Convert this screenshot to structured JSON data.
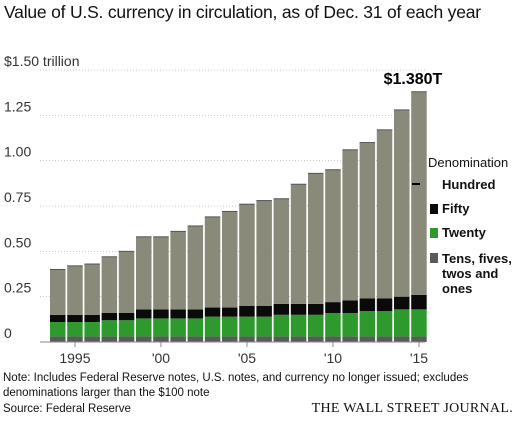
{
  "title": "Value of U.S. currency in circulation, as of Dec. 31 of each year",
  "chart_data": {
    "type": "bar",
    "stacked": true,
    "title": "Value of U.S. currency in circulation, as of Dec. 31 of each year",
    "ylabel": "$1.50 trillion",
    "ylim": [
      0,
      1.5
    ],
    "yticks": [
      0,
      0.25,
      0.5,
      0.75,
      1.0,
      1.25,
      1.5
    ],
    "ytick_labels": [
      "0",
      "0.25",
      "0.50",
      "0.75",
      "1.00",
      "1.25",
      "$1.50 trillion"
    ],
    "xtick_labels": [
      "1995",
      "'00",
      "'05",
      "'10",
      "'15"
    ],
    "categories": [
      "1994",
      "1995",
      "1996",
      "1997",
      "1998",
      "1999",
      "2000",
      "2001",
      "2002",
      "2003",
      "2004",
      "2005",
      "2006",
      "2007",
      "2008",
      "2009",
      "2010",
      "2011",
      "2012",
      "2013",
      "2014",
      "2015"
    ],
    "series": [
      {
        "name": "Tens, fives, twos and ones",
        "color": "#5a5a5a",
        "values": [
          0.03,
          0.03,
          0.03,
          0.03,
          0.03,
          0.03,
          0.03,
          0.03,
          0.03,
          0.03,
          0.03,
          0.03,
          0.03,
          0.03,
          0.03,
          0.03,
          0.03,
          0.03,
          0.03,
          0.03,
          0.03,
          0.03
        ]
      },
      {
        "name": "Twenty",
        "color": "#2e9a2e",
        "values": [
          0.08,
          0.08,
          0.08,
          0.09,
          0.09,
          0.1,
          0.1,
          0.1,
          0.1,
          0.11,
          0.11,
          0.11,
          0.11,
          0.12,
          0.12,
          0.12,
          0.13,
          0.13,
          0.14,
          0.14,
          0.15,
          0.15
        ]
      },
      {
        "name": "Fifty",
        "color": "#0a0a0a",
        "values": [
          0.04,
          0.04,
          0.04,
          0.04,
          0.04,
          0.05,
          0.05,
          0.05,
          0.05,
          0.05,
          0.05,
          0.06,
          0.06,
          0.06,
          0.06,
          0.06,
          0.06,
          0.07,
          0.07,
          0.07,
          0.07,
          0.08
        ]
      },
      {
        "name": "Hundred",
        "color": "#8a8a7a",
        "values": [
          0.25,
          0.27,
          0.28,
          0.31,
          0.34,
          0.4,
          0.4,
          0.43,
          0.46,
          0.5,
          0.53,
          0.56,
          0.58,
          0.58,
          0.66,
          0.72,
          0.73,
          0.83,
          0.86,
          0.93,
          1.03,
          1.12
        ]
      }
    ],
    "totals": [
      0.4,
      0.42,
      0.43,
      0.47,
      0.5,
      0.58,
      0.58,
      0.61,
      0.64,
      0.69,
      0.72,
      0.76,
      0.78,
      0.79,
      0.87,
      0.93,
      0.95,
      1.06,
      1.1,
      1.17,
      1.28,
      1.38
    ],
    "legend_title": "Denomination",
    "legend_position": "right",
    "grid": true,
    "annotation": "$1.380T"
  },
  "note": "Note: Includes Federal Reserve notes, U.S. notes, and currency no longer issued; excludes denominations larger than the $100 note",
  "source": "Source: Federal Reserve",
  "publisher": "THE WALL STREET JOURNAL."
}
